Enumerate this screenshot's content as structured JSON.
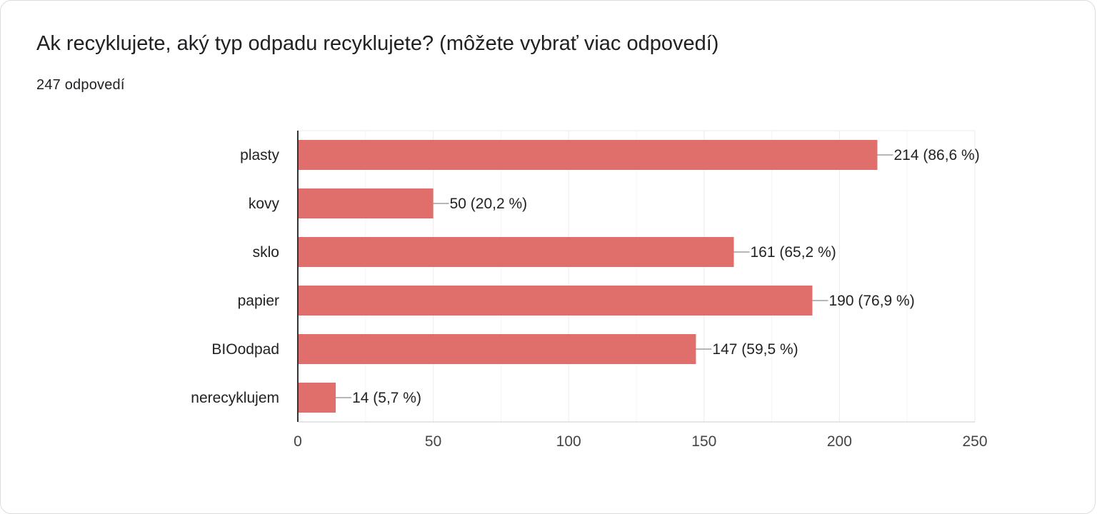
{
  "card": {
    "title": "Ak recyklujete, aký typ odpadu recyklujete? (môžete vybrať viac odpovedí)",
    "response_count": "247 odpovedí"
  },
  "colors": {
    "bar": "#e06e6a",
    "grid": "#ebebeb",
    "axis": "#333333",
    "leader": "#9e9e9e"
  },
  "chart_data": {
    "type": "bar",
    "orientation": "horizontal",
    "title": "Ak recyklujete, aký typ odpadu recyklujete? (môžete vybrať viac odpovedí)",
    "categories": [
      "plasty",
      "kovy",
      "sklo",
      "papier",
      "BIOodpad",
      "nerecyklujem"
    ],
    "values": [
      214,
      50,
      161,
      190,
      147,
      14
    ],
    "data_labels": [
      "214 (86,6 %)",
      "50 (20,2 %)",
      "161 (65,2 %)",
      "190 (76,9 %)",
      "147 (59,5 %)",
      "14 (5,7 %)"
    ],
    "xlim": [
      0,
      250
    ],
    "xticks": [
      0,
      50,
      100,
      150,
      200,
      250
    ],
    "xtick_labels": [
      "0",
      "50",
      "100",
      "150",
      "200",
      "250"
    ],
    "grid": true
  }
}
